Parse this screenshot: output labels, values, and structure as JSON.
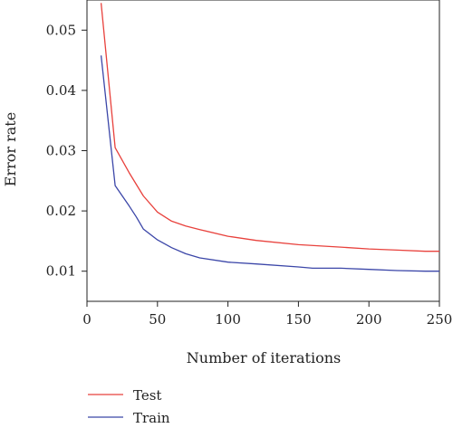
{
  "chart_data": {
    "type": "line",
    "title": "",
    "xlabel": "Number of iterations",
    "ylabel": "Error rate",
    "xlim": [
      0,
      250
    ],
    "ylim": [
      0.005,
      0.055
    ],
    "xticks": [
      "0",
      "50",
      "100",
      "150",
      "200",
      "250"
    ],
    "yticks": [
      "0.01",
      "0.02",
      "0.03",
      "0.04",
      "0.05"
    ],
    "grid": false,
    "legend_position": "bottom-left",
    "series": [
      {
        "name": "Test",
        "color": "#e8413c",
        "x": [
          10,
          20,
          30,
          40,
          50,
          60,
          70,
          80,
          100,
          120,
          150,
          180,
          200,
          220,
          240,
          250
        ],
        "y": [
          0.0545,
          0.0305,
          0.0263,
          0.0225,
          0.0198,
          0.0183,
          0.0175,
          0.0169,
          0.0158,
          0.0151,
          0.0144,
          0.014,
          0.0137,
          0.0135,
          0.0133,
          0.0133
        ]
      },
      {
        "name": "Train",
        "color": "#3b46a8",
        "x": [
          10,
          20,
          30,
          35,
          40,
          50,
          60,
          70,
          80,
          100,
          120,
          150,
          160,
          180,
          200,
          220,
          240,
          250
        ],
        "y": [
          0.0458,
          0.0242,
          0.0208,
          0.019,
          0.017,
          0.0152,
          0.0139,
          0.0129,
          0.0122,
          0.0115,
          0.0112,
          0.0107,
          0.0105,
          0.0105,
          0.0103,
          0.0101,
          0.01,
          0.01
        ]
      }
    ]
  }
}
